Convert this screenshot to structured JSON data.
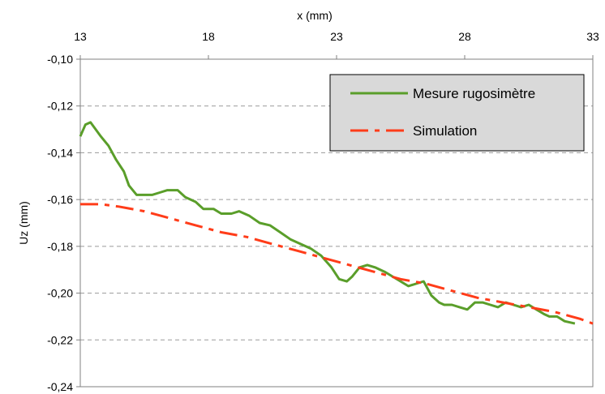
{
  "chart_data": {
    "type": "line",
    "xlabel": "x (mm)",
    "ylabel": "Uz (mm)",
    "xlim": [
      13,
      33
    ],
    "ylim": [
      -0.24,
      -0.1
    ],
    "x_ticks": [
      "13",
      "18",
      "23",
      "28",
      "33"
    ],
    "x_tick_values": [
      13,
      18,
      23,
      28,
      33
    ],
    "y_ticks": [
      "-0,10",
      "-0,12",
      "-0,14",
      "-0,16",
      "-0,18",
      "-0,20",
      "-0,22",
      "-0,24"
    ],
    "y_tick_values": [
      -0.1,
      -0.12,
      -0.14,
      -0.16,
      -0.18,
      -0.2,
      -0.22,
      -0.24
    ],
    "x_axis_position": "top",
    "grid": "horizontal dashed",
    "legend_position": "top-right",
    "series": [
      {
        "name": "Mesure rugosimètre",
        "color": "#5a9e2a",
        "style": "solid",
        "x": [
          13.0,
          13.2,
          13.4,
          13.6,
          13.8,
          14.1,
          14.4,
          14.7,
          14.9,
          15.2,
          15.5,
          15.8,
          16.1,
          16.4,
          16.8,
          17.1,
          17.5,
          17.8,
          18.2,
          18.5,
          18.9,
          19.2,
          19.6,
          20.0,
          20.4,
          20.8,
          21.2,
          21.6,
          22.0,
          22.4,
          22.8,
          23.1,
          23.4,
          23.6,
          23.9,
          24.2,
          24.5,
          24.9,
          25.2,
          25.5,
          25.8,
          26.1,
          26.4,
          26.7,
          27.0,
          27.2,
          27.5,
          27.8,
          28.1,
          28.4,
          28.7,
          29.0,
          29.3,
          29.6,
          29.9,
          30.2,
          30.5,
          30.8,
          31.1,
          31.3,
          31.6,
          31.9,
          32.3
        ],
        "values": [
          -0.133,
          -0.128,
          -0.127,
          -0.13,
          -0.133,
          -0.137,
          -0.143,
          -0.148,
          -0.154,
          -0.158,
          -0.158,
          -0.158,
          -0.157,
          -0.156,
          -0.156,
          -0.159,
          -0.161,
          -0.164,
          -0.164,
          -0.166,
          -0.166,
          -0.165,
          -0.167,
          -0.17,
          -0.171,
          -0.174,
          -0.177,
          -0.179,
          -0.181,
          -0.184,
          -0.189,
          -0.194,
          -0.195,
          -0.193,
          -0.189,
          -0.188,
          -0.189,
          -0.191,
          -0.193,
          -0.195,
          -0.197,
          -0.196,
          -0.195,
          -0.201,
          -0.204,
          -0.205,
          -0.205,
          -0.206,
          -0.207,
          -0.204,
          -0.204,
          -0.205,
          -0.206,
          -0.204,
          -0.205,
          -0.206,
          -0.205,
          -0.207,
          -0.209,
          -0.21,
          -0.21,
          -0.212,
          -0.213
        ]
      },
      {
        "name": "Simulation",
        "color": "#ff3c19",
        "style": "dash-dot",
        "x": [
          13.0,
          13.8,
          14.5,
          15.5,
          16.5,
          17.5,
          18.5,
          19.5,
          20.5,
          21.5,
          22.5,
          23.5,
          24.5,
          25.5,
          26.5,
          27.5,
          28.5,
          29.5,
          30.5,
          31.5,
          32.5,
          33.0
        ],
        "values": [
          -0.162,
          -0.162,
          -0.163,
          -0.165,
          -0.168,
          -0.171,
          -0.174,
          -0.176,
          -0.179,
          -0.182,
          -0.185,
          -0.188,
          -0.191,
          -0.194,
          -0.196,
          -0.199,
          -0.202,
          -0.204,
          -0.206,
          -0.208,
          -0.211,
          -0.213
        ]
      }
    ]
  }
}
